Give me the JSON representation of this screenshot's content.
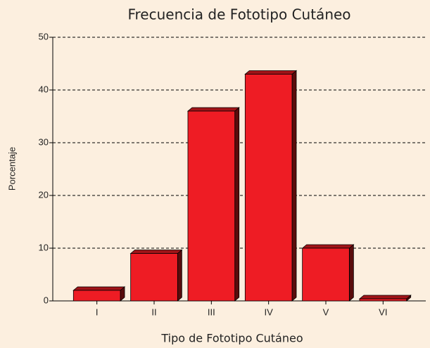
{
  "chart_data": {
    "type": "bar",
    "title": "Frecuencia de Fototipo Cutáneo",
    "x_label": "Tipo de Fototipo Cutáneo",
    "y_label": "Porcentaje",
    "categories": [
      "I",
      "II",
      "III",
      "IV",
      "V",
      "VI"
    ],
    "values": [
      2,
      9,
      36,
      43,
      10,
      0.4
    ],
    "color": "#ee1c24",
    "ylim": [
      0,
      50
    ],
    "yticks": [
      0,
      10,
      20,
      30,
      40,
      50
    ],
    "grid": true
  }
}
